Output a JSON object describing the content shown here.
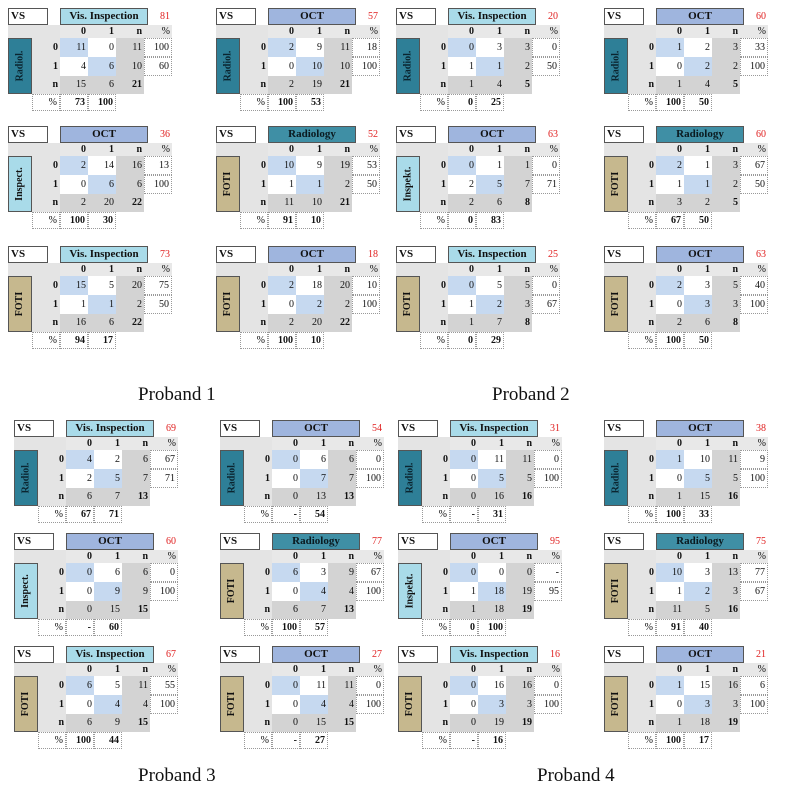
{
  "labels": {
    "vs": "VS",
    "n": "n",
    "pct": "%",
    "zero": "0",
    "one": "1"
  },
  "colors": {
    "Vis. Inspection": "#a9dbe9",
    "OCT": "#9fb5de",
    "Radiology": "#3f8fa5",
    "Radiol.": "#2e7f97",
    "Inspect.": "#a9dbe9",
    "Inspekt.": "#a9dbe9",
    "FOTI": "#c6b88e",
    "diag": "#c6d9f0",
    "kappa": "#e02020"
  },
  "probands": [
    "Proband 1",
    "Proband 2",
    "Proband 3",
    "Proband 4"
  ],
  "chart_data": {
    "type": "table",
    "tables": [
      {
        "id": "p1-1",
        "row": "Radiol.",
        "col": "Vis. Inspection",
        "kappa": "81",
        "r0": [
          "11",
          "0",
          "11",
          "100"
        ],
        "r1": [
          "4",
          "6",
          "10",
          "60"
        ],
        "rn": [
          "15",
          "6",
          "21"
        ],
        "pct": [
          "73",
          "100"
        ]
      },
      {
        "id": "p1-2",
        "row": "Radiol.",
        "col": "OCT",
        "kappa": "57",
        "r0": [
          "2",
          "9",
          "11",
          "18"
        ],
        "r1": [
          "0",
          "10",
          "10",
          "100"
        ],
        "rn": [
          "2",
          "19",
          "21"
        ],
        "pct": [
          "100",
          "53"
        ]
      },
      {
        "id": "p1-3",
        "row": "Inspect.",
        "col": "OCT",
        "kappa": "36",
        "r0": [
          "2",
          "14",
          "16",
          "13"
        ],
        "r1": [
          "0",
          "6",
          "6",
          "100"
        ],
        "rn": [
          "2",
          "20",
          "22"
        ],
        "pct": [
          "100",
          "30"
        ]
      },
      {
        "id": "p1-4",
        "row": "FOTI",
        "col": "Radiology",
        "kappa": "52",
        "r0": [
          "10",
          "9",
          "19",
          "53"
        ],
        "r1": [
          "1",
          "1",
          "2",
          "50"
        ],
        "rn": [
          "11",
          "10",
          "21"
        ],
        "pct": [
          "91",
          "10"
        ]
      },
      {
        "id": "p1-5",
        "row": "FOTI",
        "col": "Vis. Inspection",
        "kappa": "73",
        "r0": [
          "15",
          "5",
          "20",
          "75"
        ],
        "r1": [
          "1",
          "1",
          "2",
          "50"
        ],
        "rn": [
          "16",
          "6",
          "22"
        ],
        "pct": [
          "94",
          "17"
        ]
      },
      {
        "id": "p1-6",
        "row": "FOTI",
        "col": "OCT",
        "kappa": "18",
        "r0": [
          "2",
          "18",
          "20",
          "10"
        ],
        "r1": [
          "0",
          "2",
          "2",
          "100"
        ],
        "rn": [
          "2",
          "20",
          "22"
        ],
        "pct": [
          "100",
          "10"
        ]
      },
      {
        "id": "p2-1",
        "row": "Radiol.",
        "col": "Vis. Inspection",
        "kappa": "20",
        "r0": [
          "0",
          "3",
          "3",
          "0"
        ],
        "r1": [
          "1",
          "1",
          "2",
          "50"
        ],
        "rn": [
          "1",
          "4",
          "5"
        ],
        "pct": [
          "0",
          "25"
        ]
      },
      {
        "id": "p2-2",
        "row": "Radiol.",
        "col": "OCT",
        "kappa": "60",
        "r0": [
          "1",
          "2",
          "3",
          "33"
        ],
        "r1": [
          "0",
          "2",
          "2",
          "100"
        ],
        "rn": [
          "1",
          "4",
          "5"
        ],
        "pct": [
          "100",
          "50"
        ]
      },
      {
        "id": "p2-3",
        "row": "Inspekt.",
        "col": "OCT",
        "kappa": "63",
        "r0": [
          "0",
          "1",
          "1",
          "0"
        ],
        "r1": [
          "2",
          "5",
          "7",
          "71"
        ],
        "rn": [
          "2",
          "6",
          "8"
        ],
        "pct": [
          "0",
          "83"
        ]
      },
      {
        "id": "p2-4",
        "row": "FOTI",
        "col": "Radiology",
        "kappa": "60",
        "r0": [
          "2",
          "1",
          "3",
          "67"
        ],
        "r1": [
          "1",
          "1",
          "2",
          "50"
        ],
        "rn": [
          "3",
          "2",
          "5"
        ],
        "pct": [
          "67",
          "50"
        ]
      },
      {
        "id": "p2-5",
        "row": "FOTI",
        "col": "Vis. Inspection",
        "kappa": "25",
        "r0": [
          "0",
          "5",
          "5",
          "0"
        ],
        "r1": [
          "1",
          "2",
          "3",
          "67"
        ],
        "rn": [
          "1",
          "7",
          "8"
        ],
        "pct": [
          "0",
          "29"
        ]
      },
      {
        "id": "p2-6",
        "row": "FOTI",
        "col": "OCT",
        "kappa": "63",
        "r0": [
          "2",
          "3",
          "5",
          "40"
        ],
        "r1": [
          "0",
          "3",
          "3",
          "100"
        ],
        "rn": [
          "2",
          "6",
          "8"
        ],
        "pct": [
          "100",
          "50"
        ]
      },
      {
        "id": "p3-1",
        "row": "Radiol.",
        "col": "Vis. Inspection",
        "kappa": "69",
        "r0": [
          "4",
          "2",
          "6",
          "67"
        ],
        "r1": [
          "2",
          "5",
          "7",
          "71"
        ],
        "rn": [
          "6",
          "7",
          "13"
        ],
        "pct": [
          "67",
          "71"
        ]
      },
      {
        "id": "p3-2",
        "row": "Radiol.",
        "col": "OCT",
        "kappa": "54",
        "r0": [
          "0",
          "6",
          "6",
          "0"
        ],
        "r1": [
          "0",
          "7",
          "7",
          "100"
        ],
        "rn": [
          "0",
          "13",
          "13"
        ],
        "pct": [
          "-",
          "54"
        ]
      },
      {
        "id": "p3-3",
        "row": "Inspect.",
        "col": "OCT",
        "kappa": "60",
        "r0": [
          "0",
          "6",
          "6",
          "0"
        ],
        "r1": [
          "0",
          "9",
          "9",
          "100"
        ],
        "rn": [
          "0",
          "15",
          "15"
        ],
        "pct": [
          "-",
          "60"
        ]
      },
      {
        "id": "p3-4",
        "row": "FOTI",
        "col": "Radiology",
        "kappa": "77",
        "r0": [
          "6",
          "3",
          "9",
          "67"
        ],
        "r1": [
          "0",
          "4",
          "4",
          "100"
        ],
        "rn": [
          "6",
          "7",
          "13"
        ],
        "pct": [
          "100",
          "57"
        ]
      },
      {
        "id": "p3-5",
        "row": "FOTI",
        "col": "Vis. Inspection",
        "kappa": "67",
        "r0": [
          "6",
          "5",
          "11",
          "55"
        ],
        "r1": [
          "0",
          "4",
          "4",
          "100"
        ],
        "rn": [
          "6",
          "9",
          "15"
        ],
        "pct": [
          "100",
          "44"
        ]
      },
      {
        "id": "p3-6",
        "row": "FOTI",
        "col": "OCT",
        "kappa": "27",
        "r0": [
          "0",
          "11",
          "11",
          "0"
        ],
        "r1": [
          "0",
          "4",
          "4",
          "100"
        ],
        "rn": [
          "0",
          "15",
          "15"
        ],
        "pct": [
          "-",
          "27"
        ]
      },
      {
        "id": "p4-1",
        "row": "Radiol.",
        "col": "Vis. Inspection",
        "kappa": "31",
        "r0": [
          "0",
          "11",
          "11",
          "0"
        ],
        "r1": [
          "0",
          "5",
          "5",
          "100"
        ],
        "rn": [
          "0",
          "16",
          "16"
        ],
        "pct": [
          "-",
          "31"
        ]
      },
      {
        "id": "p4-2",
        "row": "Radiol.",
        "col": "OCT",
        "kappa": "38",
        "r0": [
          "1",
          "10",
          "11",
          "9"
        ],
        "r1": [
          "0",
          "5",
          "5",
          "100"
        ],
        "rn": [
          "1",
          "15",
          "16"
        ],
        "pct": [
          "100",
          "33"
        ]
      },
      {
        "id": "p4-3",
        "row": "Inspekt.",
        "col": "OCT",
        "kappa": "95",
        "r0": [
          "0",
          "0",
          "0",
          "-"
        ],
        "r1": [
          "1",
          "18",
          "19",
          "95"
        ],
        "rn": [
          "1",
          "18",
          "19"
        ],
        "pct": [
          "0",
          "100"
        ]
      },
      {
        "id": "p4-4",
        "row": "FOTI",
        "col": "Radiology",
        "kappa": "75",
        "r0": [
          "10",
          "3",
          "13",
          "77"
        ],
        "r1": [
          "1",
          "2",
          "3",
          "67"
        ],
        "rn": [
          "11",
          "5",
          "16"
        ],
        "pct": [
          "91",
          "40"
        ]
      },
      {
        "id": "p4-5",
        "row": "FOTI",
        "col": "Vis. Inspection",
        "kappa": "16",
        "r0": [
          "0",
          "16",
          "16",
          "0"
        ],
        "r1": [
          "0",
          "3",
          "3",
          "100"
        ],
        "rn": [
          "0",
          "19",
          "19"
        ],
        "pct": [
          "-",
          "16"
        ]
      },
      {
        "id": "p4-6",
        "row": "FOTI",
        "col": "OCT",
        "kappa": "21",
        "r0": [
          "1",
          "15",
          "16",
          "6"
        ],
        "r1": [
          "0",
          "3",
          "3",
          "100"
        ],
        "rn": [
          "1",
          "18",
          "19"
        ],
        "pct": [
          "100",
          "17"
        ]
      }
    ]
  }
}
